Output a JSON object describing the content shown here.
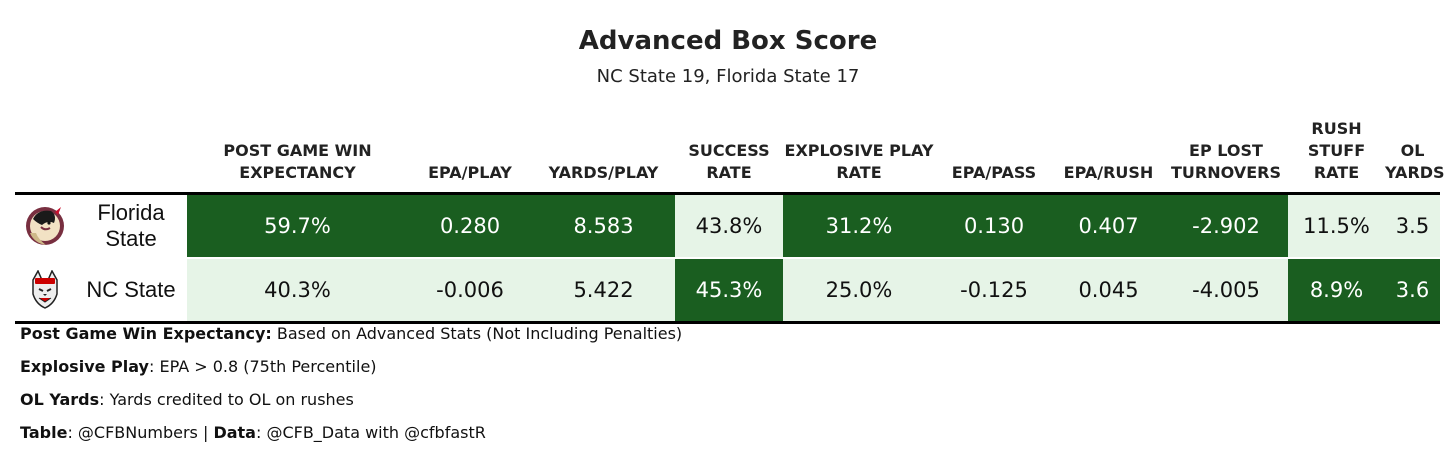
{
  "title": "Advanced Box Score",
  "subtitle": "NC State 19, Florida State 17",
  "chart_data": {
    "type": "table",
    "columns": [
      {
        "key": "logo",
        "label": ""
      },
      {
        "key": "team",
        "label": ""
      },
      {
        "key": "wp",
        "label": "POST GAME WIN EXPECTANCY"
      },
      {
        "key": "epa_play",
        "label": "EPA/PLAY"
      },
      {
        "key": "yards_play",
        "label": "YARDS/PLAY"
      },
      {
        "key": "success",
        "label": "SUCCESS RATE"
      },
      {
        "key": "explosive",
        "label": "EXPLOSIVE PLAY RATE"
      },
      {
        "key": "epa_pass",
        "label": "EPA/PASS"
      },
      {
        "key": "epa_rush",
        "label": "EPA/RUSH"
      },
      {
        "key": "ep_lost",
        "label": "EP LOST TURNOVERS"
      },
      {
        "key": "stuff",
        "label": "RUSH STUFF RATE"
      },
      {
        "key": "ol",
        "label": "OL YARDS"
      }
    ],
    "rows": [
      {
        "team": "Florida State",
        "logo": "florida-state-seminoles-logo",
        "values": [
          "59.7%",
          "0.280",
          "8.583",
          "43.8%",
          "31.2%",
          "0.130",
          "0.407",
          "-2.902",
          "11.5%",
          "3.5"
        ],
        "shading": [
          "dark",
          "dark",
          "dark",
          "light",
          "dark",
          "dark",
          "dark",
          "dark",
          "light",
          "light"
        ]
      },
      {
        "team": "NC State",
        "logo": "nc-state-wolfpack-logo",
        "values": [
          "40.3%",
          "-0.006",
          "5.422",
          "45.3%",
          "25.0%",
          "-0.125",
          "0.045",
          "-4.005",
          "8.9%",
          "3.6"
        ],
        "shading": [
          "light",
          "light",
          "light",
          "dark",
          "light",
          "light",
          "light",
          "light",
          "dark",
          "dark"
        ]
      }
    ],
    "colors": {
      "dark": "#1a5e20",
      "light": "#e6f4e7"
    }
  },
  "notes": [
    {
      "label": "Post Game Win Expectancy:",
      "text": " Based on Advanced Stats (Not Including Penalties)"
    },
    {
      "label": "Explosive Play",
      "text": ": EPA > 0.8 (75th Percentile)"
    },
    {
      "label": "OL Yards",
      "text": ": Yards credited to OL on rushes"
    },
    {
      "label": "Table",
      "text": ": @CFBNumbers | ",
      "label2": "Data",
      "text2": ": @CFB_Data with @cfbfastR"
    }
  ]
}
